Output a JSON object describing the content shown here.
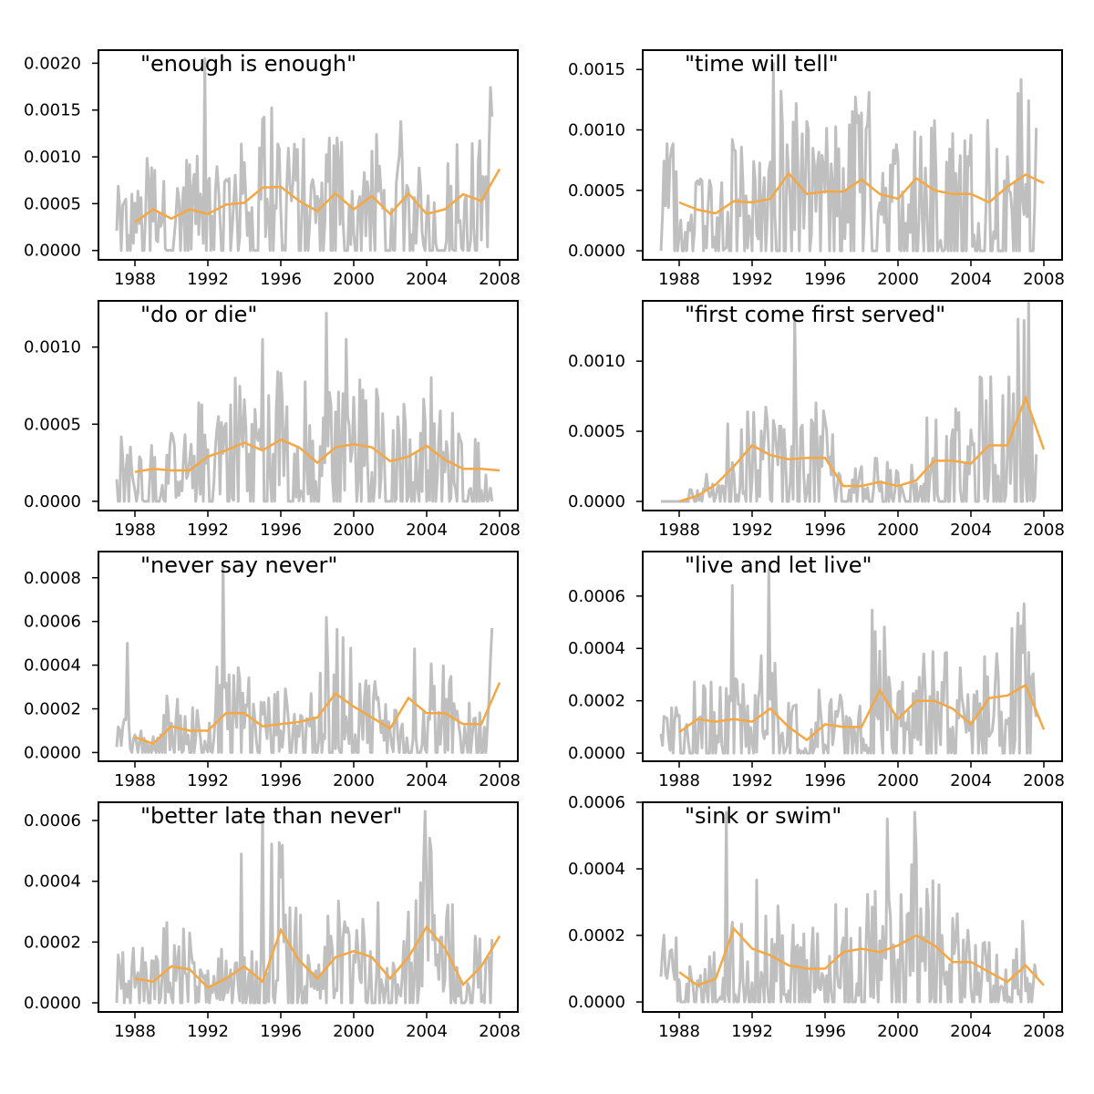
{
  "chart_data": [
    {
      "type": "line",
      "title": "\"enough is enough\"",
      "xlim": [
        1986,
        2009
      ],
      "ylim": [
        -0.0001,
        0.00214
      ],
      "yticks": [
        "0.0000",
        "0.0005",
        "0.0010",
        "0.0015",
        "0.0020"
      ],
      "ytick_values": [
        0,
        0.0005,
        0.001,
        0.0015,
        0.002
      ],
      "xticks": [
        "1988",
        "1992",
        "1996",
        "2000",
        "2004",
        "2008"
      ],
      "xtick_values": [
        1988,
        1992,
        1996,
        2000,
        2004,
        2008
      ],
      "yearly_years": [
        1988,
        1989,
        1990,
        1991,
        1992,
        1993,
        1994,
        1995,
        1996,
        1997,
        1998,
        1999,
        2000,
        2001,
        2002,
        2003,
        2004,
        2005,
        2006,
        2007,
        2008
      ],
      "yearly_mean": [
        0.0003,
        0.00044,
        0.00034,
        0.00044,
        0.00039,
        0.00049,
        0.00051,
        0.00067,
        0.00068,
        0.00053,
        0.00042,
        0.00061,
        0.00044,
        0.00058,
        0.00039,
        0.00061,
        0.00039,
        0.00044,
        0.0006,
        0.00053,
        0.00087
      ],
      "monthly_peaks": [
        [
          1991.8,
          0.00205
        ],
        [
          1995.0,
          0.0014
        ],
        [
          1998.7,
          0.0012
        ],
        [
          2007.6,
          0.00143
        ]
      ]
    },
    {
      "type": "line",
      "title": "\"time will tell\"",
      "xlim": [
        1986,
        2009
      ],
      "ylim": [
        -7.5e-05,
        0.00166
      ],
      "yticks": [
        "0.0000",
        "0.0005",
        "0.0010",
        "0.0015"
      ],
      "ytick_values": [
        0,
        0.0005,
        0.001,
        0.0015
      ],
      "xticks": [
        "1988",
        "1992",
        "1996",
        "2000",
        "2004",
        "2008"
      ],
      "xtick_values": [
        1988,
        1992,
        1996,
        2000,
        2004,
        2008
      ],
      "yearly_years": [
        1988,
        1989,
        1990,
        1991,
        1992,
        1993,
        1994,
        1995,
        1996,
        1997,
        1998,
        1999,
        2000,
        2001,
        2002,
        2003,
        2004,
        2005,
        2006,
        2007,
        2008
      ],
      "yearly_mean": [
        0.0004,
        0.00034,
        0.00031,
        0.00041,
        0.0004,
        0.00043,
        0.00064,
        0.00047,
        0.00049,
        0.00049,
        0.00059,
        0.00047,
        0.00043,
        0.0006,
        0.0005,
        0.00047,
        0.00047,
        0.0004,
        0.00053,
        0.00063,
        0.00056
      ],
      "monthly_peaks": [
        [
          1993.2,
          0.00155
        ],
        [
          1997.8,
          0.00112
        ],
        [
          2004.9,
          0.00108
        ]
      ]
    },
    {
      "type": "line",
      "title": "\"do or die\"",
      "xlim": [
        1986,
        2009
      ],
      "ylim": [
        -6e-05,
        0.0013
      ],
      "yticks": [
        "0.0000",
        "0.0005",
        "0.0010"
      ],
      "ytick_values": [
        0,
        0.0005,
        0.001
      ],
      "xticks": [
        "1988",
        "1992",
        "1996",
        "2000",
        "2004",
        "2008"
      ],
      "xtick_values": [
        1988,
        1992,
        1996,
        2000,
        2004,
        2008
      ],
      "yearly_years": [
        1988,
        1989,
        1990,
        1991,
        1992,
        1993,
        1994,
        1995,
        1996,
        1997,
        1998,
        1999,
        2000,
        2001,
        2002,
        2003,
        2004,
        2005,
        2006,
        2007,
        2008
      ],
      "yearly_mean": [
        0.00019,
        0.00021,
        0.0002,
        0.0002,
        0.00029,
        0.00033,
        0.00038,
        0.00033,
        0.0004,
        0.00035,
        0.00025,
        0.00035,
        0.00037,
        0.00035,
        0.00026,
        0.00029,
        0.00036,
        0.00027,
        0.00021,
        0.00021,
        0.0002
      ],
      "monthly_peaks": [
        [
          1995.0,
          0.00105
        ],
        [
          1998.5,
          0.00122
        ],
        [
          1999.6,
          0.00105
        ]
      ]
    },
    {
      "type": "line",
      "title": "\"first come first served\"",
      "xlim": [
        1986,
        2009
      ],
      "ylim": [
        -6.5e-05,
        0.00143
      ],
      "yticks": [
        "0.0000",
        "0.0005",
        "0.0010"
      ],
      "ytick_values": [
        0,
        0.0005,
        0.001
      ],
      "xticks": [
        "1988",
        "1992",
        "1996",
        "2000",
        "2004",
        "2008"
      ],
      "xtick_values": [
        1988,
        1992,
        1996,
        2000,
        2004,
        2008
      ],
      "yearly_years": [
        1988,
        1989,
        1990,
        1991,
        1992,
        1993,
        1994,
        1995,
        1996,
        1997,
        1998,
        1999,
        2000,
        2001,
        2002,
        2003,
        2004,
        2005,
        2006,
        2007,
        2008
      ],
      "yearly_mean": [
        0.0,
        4e-05,
        0.00012,
        0.00025,
        0.0004,
        0.00033,
        0.0003,
        0.00031,
        0.00031,
        0.00011,
        0.00011,
        0.00014,
        0.00011,
        0.00015,
        0.00029,
        0.00029,
        0.00027,
        0.0004,
        0.0004,
        0.00074,
        0.00037
      ],
      "monthly_peaks": [
        [
          1994.3,
          0.00135
        ],
        [
          2006.6,
          0.0013
        ],
        [
          2006.9,
          0.00129
        ]
      ]
    },
    {
      "type": "line",
      "title": "\"never say never\"",
      "xlim": [
        1986,
        2009
      ],
      "ylim": [
        -4e-05,
        0.00092
      ],
      "yticks": [
        "0.0000",
        "0.0002",
        "0.0004",
        "0.0006",
        "0.0008"
      ],
      "ytick_values": [
        0,
        0.0002,
        0.0004,
        0.0006,
        0.0008
      ],
      "xticks": [
        "1988",
        "1992",
        "1996",
        "2000",
        "2004",
        "2008"
      ],
      "xtick_values": [
        1988,
        1992,
        1996,
        2000,
        2004,
        2008
      ],
      "yearly_years": [
        1988,
        1989,
        1990,
        1991,
        1992,
        1993,
        1994,
        1995,
        1996,
        1997,
        1998,
        1999,
        2000,
        2001,
        2002,
        2003,
        2004,
        2005,
        2006,
        2007,
        2008
      ],
      "yearly_mean": [
        7e-05,
        4e-05,
        0.00012,
        0.0001,
        0.0001,
        0.00018,
        0.00018,
        0.00012,
        0.00013,
        0.00014,
        0.00016,
        0.00027,
        0.00021,
        0.00016,
        0.00011,
        0.00025,
        0.00018,
        0.00018,
        0.00013,
        0.00013,
        0.00032
      ],
      "monthly_peaks": [
        [
          1987.6,
          0.0005
        ],
        [
          1992.8,
          0.00087
        ],
        [
          2007.6,
          0.00057
        ]
      ]
    },
    {
      "type": "line",
      "title": "\"live and let live\"",
      "xlim": [
        1986,
        2009
      ],
      "ylim": [
        -3.1e-05,
        0.00077
      ],
      "yticks": [
        "0.0000",
        "0.0002",
        "0.0004",
        "0.0006"
      ],
      "ytick_values": [
        0,
        0.0002,
        0.0004,
        0.0006
      ],
      "xticks": [
        "1988",
        "1992",
        "1996",
        "2000",
        "2004",
        "2008"
      ],
      "xtick_values": [
        1988,
        1992,
        1996,
        2000,
        2004,
        2008
      ],
      "yearly_years": [
        1988,
        1989,
        1990,
        1991,
        1992,
        1993,
        1994,
        1995,
        1996,
        1997,
        1998,
        1999,
        2000,
        2001,
        2002,
        2003,
        2004,
        2005,
        2006,
        2007,
        2008
      ],
      "yearly_mean": [
        8e-05,
        0.00013,
        0.00012,
        0.00013,
        0.00012,
        0.00017,
        0.0001,
        5e-05,
        0.00011,
        0.0001,
        0.0001,
        0.00024,
        0.00013,
        0.0002,
        0.0002,
        0.00017,
        0.00011,
        0.00021,
        0.00022,
        0.00026,
        9e-05
      ],
      "monthly_peaks": [
        [
          1990.9,
          0.00064
        ],
        [
          1992.9,
          0.0007
        ],
        [
          2006.9,
          0.00057
        ]
      ]
    },
    {
      "type": "line",
      "title": "\"better late than never\"",
      "xlim": [
        1986,
        2009
      ],
      "ylim": [
        -3e-05,
        0.00066
      ],
      "yticks": [
        "0.0000",
        "0.0002",
        "0.0004",
        "0.0006"
      ],
      "ytick_values": [
        0,
        0.0002,
        0.0004,
        0.0006
      ],
      "xticks": [
        "1988",
        "1992",
        "1996",
        "2000",
        "2004",
        "2008"
      ],
      "xtick_values": [
        1988,
        1992,
        1996,
        2000,
        2004,
        2008
      ],
      "yearly_years": [
        1988,
        1989,
        1990,
        1991,
        1992,
        1993,
        1994,
        1995,
        1996,
        1997,
        1998,
        1999,
        2000,
        2001,
        2002,
        2003,
        2004,
        2005,
        2006,
        2007,
        2008
      ],
      "yearly_mean": [
        8e-05,
        7e-05,
        0.00012,
        0.00011,
        5e-05,
        8e-05,
        0.00012,
        7e-05,
        0.00024,
        0.00014,
        8e-05,
        0.00015,
        0.00017,
        0.00015,
        8e-05,
        0.00015,
        0.00025,
        0.00018,
        6e-05,
        0.00012,
        0.00022
      ],
      "monthly_peaks": [
        [
          1993.8,
          0.00049
        ],
        [
          1995.0,
          0.00062
        ],
        [
          2003.9,
          0.00063
        ]
      ]
    },
    {
      "type": "line",
      "title": "\"sink or swim\"",
      "xlim": [
        1986,
        2009
      ],
      "ylim": [
        -3e-05,
        0.0006
      ],
      "yticks": [
        "0.0000",
        "0.0002",
        "0.0004",
        "0.0006"
      ],
      "ytick_values": [
        0,
        0.0002,
        0.0004,
        0.0006
      ],
      "xticks": [
        "1988",
        "1992",
        "1996",
        "2000",
        "2004",
        "2008"
      ],
      "xtick_values": [
        1988,
        1992,
        1996,
        2000,
        2004,
        2008
      ],
      "yearly_years": [
        1988,
        1989,
        1990,
        1991,
        1992,
        1993,
        1994,
        1995,
        1996,
        1997,
        1998,
        1999,
        2000,
        2001,
        2002,
        2003,
        2004,
        2005,
        2006,
        2007,
        2008
      ],
      "yearly_mean": [
        9e-05,
        5e-05,
        7e-05,
        0.00022,
        0.00016,
        0.00014,
        0.00011,
        0.0001,
        0.0001,
        0.00015,
        0.00016,
        0.00015,
        0.00017,
        0.0002,
        0.00017,
        0.00012,
        0.00012,
        9e-05,
        6e-05,
        0.00011,
        5e-05
      ],
      "monthly_peaks": [
        [
          1990.6,
          0.00057
        ],
        [
          1999.4,
          0.00055
        ],
        [
          2000.9,
          0.00057
        ]
      ]
    }
  ],
  "colors": {
    "monthly": "#bfbfbf",
    "yearly": "#f5a742",
    "axis": "#000000"
  }
}
